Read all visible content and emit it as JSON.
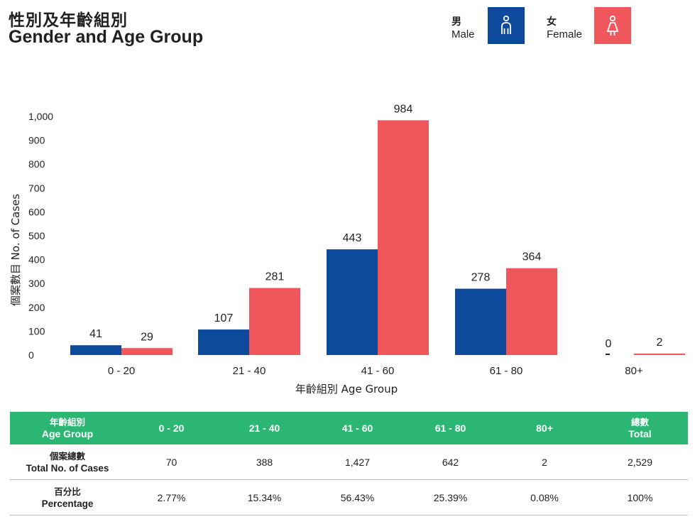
{
  "header": {
    "title_zh": "性別及年齡組別",
    "title_en": "Gender and Age Group"
  },
  "legend": {
    "male": {
      "zh": "男",
      "en": "Male",
      "color": "#0e4a9b",
      "icon": "male-person-icon"
    },
    "female": {
      "zh": "女",
      "en": "Female",
      "color": "#ef575d",
      "icon": "female-person-icon"
    }
  },
  "chart_data": {
    "type": "bar",
    "categories": [
      "0 - 20",
      "21 - 40",
      "41 - 60",
      "61 - 80",
      "80+"
    ],
    "series": [
      {
        "name": "Male",
        "values": [
          41,
          107,
          443,
          278,
          0
        ],
        "color": "#0e4a9b"
      },
      {
        "name": "Female",
        "values": [
          29,
          281,
          984,
          364,
          2
        ],
        "color": "#ef575d"
      }
    ],
    "yticks": [
      "0",
      "100",
      "200",
      "300",
      "400",
      "500",
      "600",
      "700",
      "800",
      "900",
      "1,000"
    ],
    "ylim": [
      0,
      1000
    ],
    "xlabel": "年齡組別 Age Group",
    "ylabel": "個案數目 No. of Cases",
    "grid": false
  },
  "table": {
    "header": {
      "label_zh": "年齡組別",
      "label_en": "Age Group",
      "groups": [
        "0 - 20",
        "21 - 40",
        "41 - 60",
        "61 - 80",
        "80+"
      ],
      "total_zh": "總數",
      "total_en": "Total"
    },
    "rows": [
      {
        "label_zh": "個案總數",
        "label_en": "Total No. of Cases",
        "values": [
          "70",
          "388",
          "1,427",
          "642",
          "2",
          "2,529"
        ]
      },
      {
        "label_zh": "百分比",
        "label_en": "Percentage",
        "values": [
          "2.77%",
          "15.34%",
          "56.43%",
          "25.39%",
          "0.08%",
          "100%"
        ]
      }
    ],
    "header_color": "#2bb673"
  }
}
